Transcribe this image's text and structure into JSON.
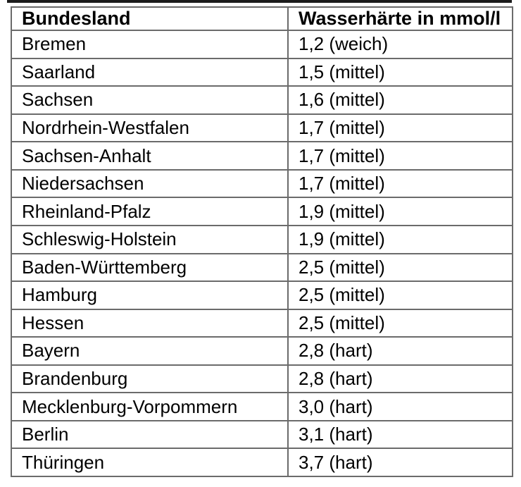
{
  "chart_data": {
    "type": "table",
    "title": "",
    "columns": [
      "Bundesland",
      "Wasserhärte in mmol/l"
    ],
    "rows": [
      [
        "Bremen",
        "1,2 (weich)"
      ],
      [
        "Saarland",
        "1,5 (mittel)"
      ],
      [
        "Sachsen",
        "1,6 (mittel)"
      ],
      [
        "Nordrhein-Westfalen",
        "1,7 (mittel)"
      ],
      [
        "Sachsen-Anhalt",
        "1,7 (mittel)"
      ],
      [
        "Niedersachsen",
        "1,7 (mittel)"
      ],
      [
        "Rheinland-Pfalz",
        "1,9 (mittel)"
      ],
      [
        "Schleswig-Holstein",
        "1,9 (mittel)"
      ],
      [
        "Baden-Württemberg",
        "2,5 (mittel)"
      ],
      [
        "Hamburg",
        "2,5 (mittel)"
      ],
      [
        "Hessen",
        "2,5 (mittel)"
      ],
      [
        "Bayern",
        "2,8 (hart)"
      ],
      [
        "Brandenburg",
        "2,8 (hart)"
      ],
      [
        "Mecklenburg-Vorpommern",
        "3,0 (hart)"
      ],
      [
        "Berlin",
        "3,1 (hart)"
      ],
      [
        "Thüringen",
        "3,7 (hart)"
      ]
    ],
    "layout": {
      "grid": "on",
      "header_bold": true
    }
  },
  "colors": {
    "border": "#6b6b6b",
    "text": "#000000",
    "background": "#ffffff",
    "top_rule": "#1c1c1c"
  }
}
